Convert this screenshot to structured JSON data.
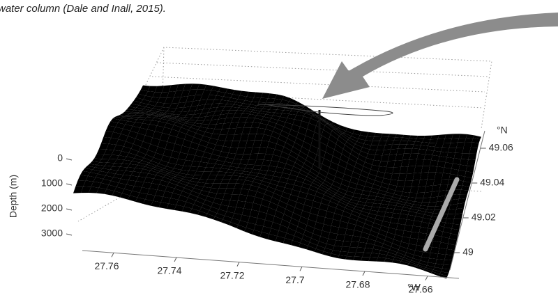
{
  "caption": "water column (Dale and Inall, 2015).",
  "chart_data": {
    "type": "surface",
    "zlabel": "Depth (m)",
    "zlim": [
      0,
      3000
    ],
    "zticks": [
      0,
      1000,
      2000,
      3000
    ],
    "xlabel": "°W",
    "xlim": [
      27.77,
      27.65
    ],
    "xticks": [
      27.76,
      27.74,
      27.72,
      27.7,
      27.68,
      27.66
    ],
    "ylabel": "°N",
    "ylim": [
      48.99,
      49.07
    ],
    "yticks": [
      49,
      49.02,
      49.04,
      49.06
    ]
  }
}
